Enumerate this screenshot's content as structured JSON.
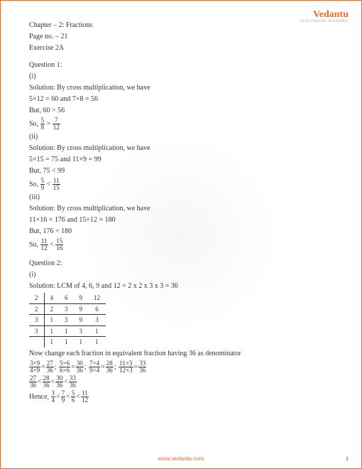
{
  "logo": "Vedantu",
  "logo_sub": "LIVE ONLINE TUTORING",
  "header": {
    "chapter": "Chapter – 2: Fractions",
    "page": "Page no. – 21",
    "exercise": "Exercise 2A"
  },
  "q1": {
    "title": "Question 1:",
    "p1": {
      "lbl": "(i)",
      "sol": "Solution: By cross multiplication, we have",
      "eq": "5×12 = 60 and 7×8 = 56",
      "but": " But, 60 > 56",
      "so_pre": " So, ",
      "f1n": "5",
      "f1d": "8",
      "sign": ">",
      "f2n": "7",
      "f2d": "12"
    },
    "p2": {
      "lbl": "(ii)",
      "sol": "Solution: By cross multiplication, we have",
      "eq": "5×15 = 75 and 11×9 = 99",
      "but": " But, 75 < 99",
      "so_pre": " So, ",
      "f1n": "5",
      "f1d": "9",
      "sign": "<",
      "f2n": "11",
      "f2d": "15"
    },
    "p3": {
      "lbl": "(iii)",
      "sol": "Solution: By cross multiplication, we have",
      "eq": "11×16 = 176 and 15×12 = 180",
      "but": " But, 176 < 180",
      "so_pre": " So, ",
      "f1n": "11",
      "f1d": "12",
      "sign": "<",
      "f2n": "15",
      "f2d": "16"
    }
  },
  "q2": {
    "title": "Question 2:",
    "lbl": "(i)",
    "sol": "Solution: LCM of 4, 6, 9 and 12 = 2 x 2 x 3 x 3 = 36",
    "table": [
      [
        "2",
        "4",
        "6",
        "9",
        "12"
      ],
      [
        "2",
        "2",
        "3",
        "9",
        "6"
      ],
      [
        "3",
        "1",
        "3",
        "9",
        "3"
      ],
      [
        "3",
        "1",
        "1",
        "3",
        "1"
      ],
      [
        "",
        "1",
        "1",
        "1",
        "1"
      ]
    ],
    "change_text": "Now change each fraction in equivalent fraction having 36 as denominator",
    "eq_fracs": [
      {
        "n": "3×9",
        "d": "4×9"
      },
      {
        "s": "="
      },
      {
        "n": "27",
        "d": "36"
      },
      {
        "s": "; "
      },
      {
        "n": "5×6",
        "d": "6×6"
      },
      {
        "s": "="
      },
      {
        "n": "30",
        "d": "36"
      },
      {
        "s": "; "
      },
      {
        "n": "7×4",
        "d": "9×4"
      },
      {
        "s": "="
      },
      {
        "n": "28",
        "d": "36"
      },
      {
        "s": "; "
      },
      {
        "n": "11×3",
        "d": "12×3"
      },
      {
        "s": "="
      },
      {
        "n": "33",
        "d": "36"
      }
    ],
    "order_fracs": [
      {
        "n": "27",
        "d": "36"
      },
      {
        "s": "<"
      },
      {
        "n": "28",
        "d": "36"
      },
      {
        "s": "<"
      },
      {
        "n": "30",
        "d": "36"
      },
      {
        "s": "<"
      },
      {
        "n": "33",
        "d": "36"
      }
    ],
    "hence_pre": " Hence, ",
    "hence_fracs": [
      {
        "n": "3",
        "d": "4"
      },
      {
        "s": "<"
      },
      {
        "n": "7",
        "d": "9"
      },
      {
        "s": "<"
      },
      {
        "n": "5",
        "d": "6"
      },
      {
        "s": "<"
      },
      {
        "n": "11",
        "d": "12"
      }
    ]
  },
  "footer": {
    "url": "www.vedantu.com",
    "page": "1"
  }
}
